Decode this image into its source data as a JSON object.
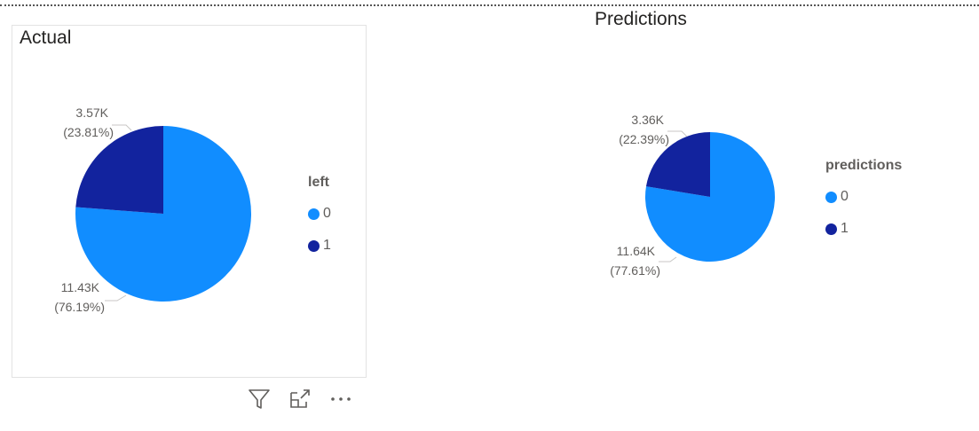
{
  "colors": {
    "series_0": "#118dff",
    "series_1": "#12239e",
    "label_text": "#605e5c",
    "leader_line": "#c8c6c4"
  },
  "visual_header_icons": [
    "filter-icon",
    "focus-mode-icon",
    "more-options-icon"
  ],
  "chart_data": [
    {
      "type": "pie",
      "title": "Actual",
      "legend_title": "left",
      "legend_position": "right",
      "slices": [
        {
          "category": "0",
          "value": 11430,
          "display": "11.43K",
          "percent": "(76.19%)"
        },
        {
          "category": "1",
          "value": 3570,
          "display": "3.57K",
          "percent": "(23.81%)"
        }
      ]
    },
    {
      "type": "pie",
      "title": "Predictions",
      "legend_title": "predictions",
      "legend_position": "right",
      "slices": [
        {
          "category": "0",
          "value": 11640,
          "display": "11.64K",
          "percent": "(77.61%)"
        },
        {
          "category": "1",
          "value": 3360,
          "display": "3.36K",
          "percent": "(22.39%)"
        }
      ]
    }
  ]
}
